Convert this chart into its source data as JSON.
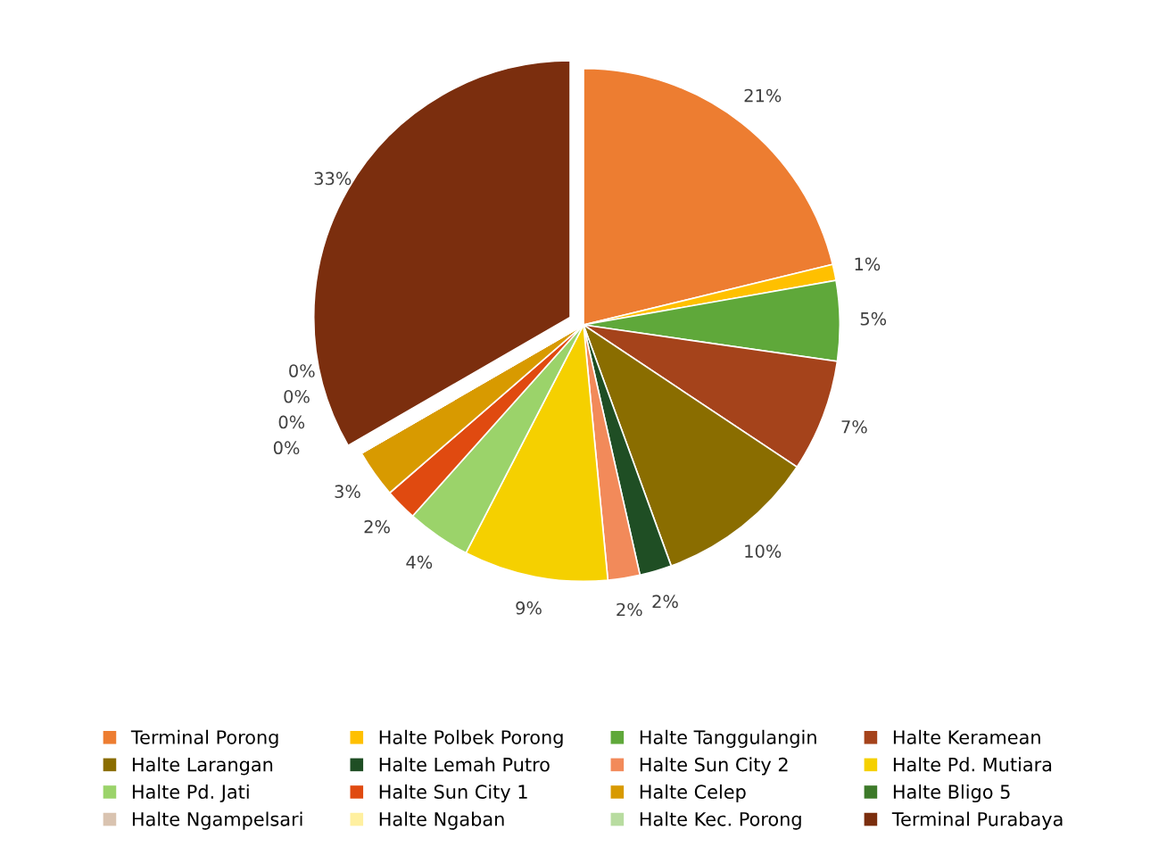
{
  "chart_data": {
    "type": "pie",
    "categories": [
      "Terminal Porong",
      "Halte Polbek Porong",
      "Halte Tanggulangin",
      "Halte Keramean",
      "Halte Larangan",
      "Halte Lemah Putro",
      "Halte Sun City 2",
      "Halte Pd. Mutiara",
      "Halte Pd. Jati",
      "Halte Sun City 1",
      "Halte Celep",
      "Halte Bligo 5",
      "Halte Ngampelsari",
      "Halte Ngaban",
      "Halte Kec. Porong",
      "Terminal Purabaya"
    ],
    "values": [
      21,
      1,
      5,
      7,
      10,
      2,
      2,
      9,
      4,
      2,
      3,
      0,
      0,
      0,
      0,
      33
    ],
    "value_labels": [
      "21%",
      "1%",
      "5%",
      "7%",
      "10%",
      "2%",
      "2%",
      "9%",
      "4%",
      "2%",
      "3%",
      "0%",
      "0%",
      "0%",
      "0%",
      "33%"
    ],
    "colors": [
      "#ed7d31",
      "#ffc000",
      "#5fa83a",
      "#a5431b",
      "#8a6d00",
      "#1f4e24",
      "#f28a5a",
      "#f5d000",
      "#9bd36a",
      "#e04a10",
      "#d89a00",
      "#3d7a2a",
      "#d9c3b0",
      "#fff0a0",
      "#b8dca0",
      "#7b2e0e"
    ],
    "legend": "bottom"
  }
}
